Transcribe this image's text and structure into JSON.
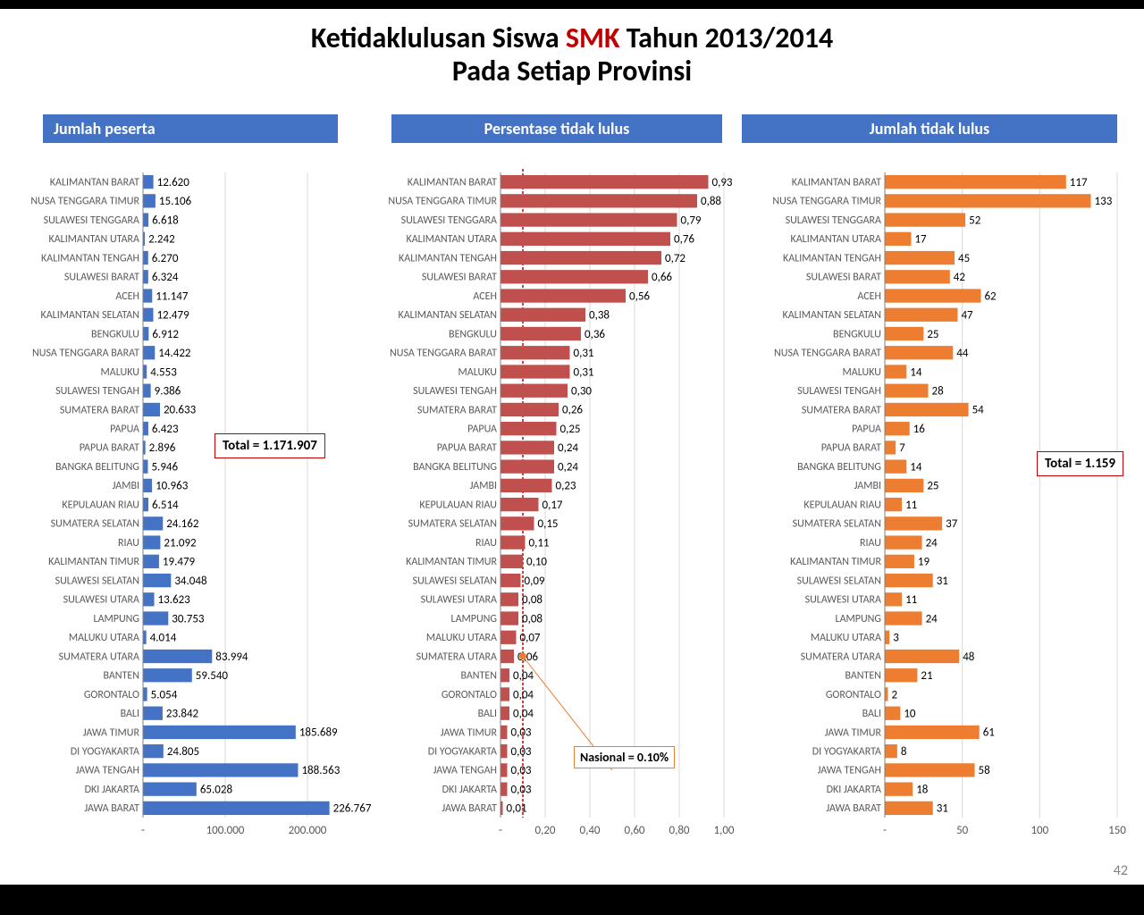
{
  "title_prefix": "Ketidaklulusan Siswa ",
  "title_red": "SMK",
  "title_suffix": " Tahun 2013/2014",
  "subtitle": "Pada Setiap Provinsi",
  "page_number": "42",
  "headers": {
    "left": "Jumlah peserta",
    "mid": "Persentase tidak lulus",
    "right": "Jumlah tidak lulus"
  },
  "categories": [
    "KALIMANTAN BARAT",
    "NUSA TENGGARA TIMUR",
    "SULAWESI TENGGARA",
    "KALIMANTAN UTARA",
    "KALIMANTAN TENGAH",
    "SULAWESI BARAT",
    "ACEH",
    "KALIMANTAN SELATAN",
    "BENGKULU",
    "NUSA TENGGARA BARAT",
    "MALUKU",
    "SULAWESI TENGAH",
    "SUMATERA BARAT",
    "PAPUA",
    "PAPUA BARAT",
    "BANGKA BELITUNG",
    "JAMBI",
    "KEPULAUAN RIAU",
    "SUMATERA SELATAN",
    "RIAU",
    "KALIMANTAN TIMUR",
    "SULAWESI SELATAN",
    "SULAWESI UTARA",
    "LAMPUNG",
    "MALUKU UTARA",
    "SUMATERA UTARA",
    "BANTEN",
    "GORONTALO",
    "BALI",
    "JAWA TIMUR",
    "DI YOGYAKARTA",
    "JAWA TENGAH",
    "DKI JAKARTA",
    "JAWA BARAT"
  ],
  "chart_left": {
    "type": "bar",
    "color": "#4472c4",
    "xmax": 250000,
    "ticks": [
      0,
      100000,
      200000
    ],
    "tick_labels": [
      "-",
      "100.000",
      "200.000"
    ],
    "values": [
      12620,
      15106,
      6618,
      2242,
      6270,
      6324,
      11147,
      12479,
      6912,
      14422,
      4553,
      9386,
      20633,
      6423,
      2896,
      5946,
      10963,
      6514,
      24162,
      21092,
      19479,
      34048,
      13623,
      30753,
      4014,
      83994,
      59540,
      5054,
      23842,
      185689,
      24805,
      188563,
      65028,
      226767
    ],
    "value_labels": [
      "12.620",
      "15.106",
      "6.618",
      "2.242",
      "6.270",
      "6.324",
      "11.147",
      "12.479",
      "6.912",
      "14.422",
      "4.553",
      "9.386",
      "20.633",
      "6.423",
      "2.896",
      "5.946",
      "10.963",
      "6.514",
      "24.162",
      "21.092",
      "19.479",
      "34.048",
      "13.623",
      "30.753",
      "4.014",
      "83.994",
      "59.540",
      "5.054",
      "23.842",
      "185.689",
      "24.805",
      "188.563",
      "65.028",
      "226.767"
    ],
    "total_label": "Total =  1.171.907"
  },
  "chart_mid": {
    "type": "bar",
    "color": "#c0504d",
    "xmax": 1.0,
    "ticks": [
      0,
      0.2,
      0.4,
      0.6,
      0.8,
      1.0
    ],
    "tick_labels": [
      "-",
      "0,20",
      "0,40",
      "0,60",
      "0,80",
      "1,00"
    ],
    "values": [
      0.93,
      0.88,
      0.79,
      0.76,
      0.72,
      0.66,
      0.56,
      0.38,
      0.36,
      0.31,
      0.31,
      0.3,
      0.26,
      0.25,
      0.24,
      0.24,
      0.23,
      0.17,
      0.15,
      0.11,
      0.1,
      0.09,
      0.08,
      0.08,
      0.07,
      0.06,
      0.04,
      0.04,
      0.04,
      0.03,
      0.03,
      0.03,
      0.03,
      0.01
    ],
    "value_labels": [
      "0,93",
      "0,88",
      "0,79",
      "0,76",
      "0,72",
      "0,66",
      "0,56",
      "0,38",
      "0,36",
      "0,31",
      "0,31",
      "0,30",
      "0,26",
      "0,25",
      "0,24",
      "0,24",
      "0,23",
      "0,17",
      "0,15",
      "0,11",
      "0,10",
      "0,09",
      "0,08",
      "0,08",
      "0,07",
      "0,06",
      "0,04",
      "0,04",
      "0,04",
      "0,03",
      "0,03",
      "0,03",
      "0,03",
      "0,01"
    ],
    "national_value": 0.1,
    "national_label": "Nasional = 0.10%"
  },
  "chart_right": {
    "type": "bar",
    "color": "#ed7d31",
    "xmax": 150,
    "ticks": [
      0,
      50,
      100,
      150
    ],
    "tick_labels": [
      "-",
      "50",
      "100",
      "150"
    ],
    "values": [
      117,
      133,
      52,
      17,
      45,
      42,
      62,
      47,
      25,
      44,
      14,
      28,
      54,
      16,
      7,
      14,
      25,
      11,
      37,
      24,
      19,
      31,
      11,
      24,
      3,
      48,
      21,
      2,
      10,
      61,
      8,
      58,
      18,
      31
    ],
    "value_labels": [
      "117",
      "133",
      "52",
      "17",
      "45",
      "42",
      "62",
      "47",
      "25",
      "44",
      "14",
      "28",
      "54",
      "16",
      "7",
      "14",
      "25",
      "11",
      "37",
      "24",
      "19",
      "31",
      "11",
      "24",
      "3",
      "48",
      "21",
      "2",
      "10",
      "61",
      "8",
      "58",
      "18",
      "31"
    ],
    "total_label": "Total = 1.159"
  },
  "style": {
    "cat_fontsize": 12,
    "val_fontsize": 13,
    "bar_height_ratio": 0.72,
    "grid_color": "#d9d9d9",
    "axis_color": "#808080",
    "national_line_color": "#c00000",
    "national_accent": "#ed7d31"
  }
}
